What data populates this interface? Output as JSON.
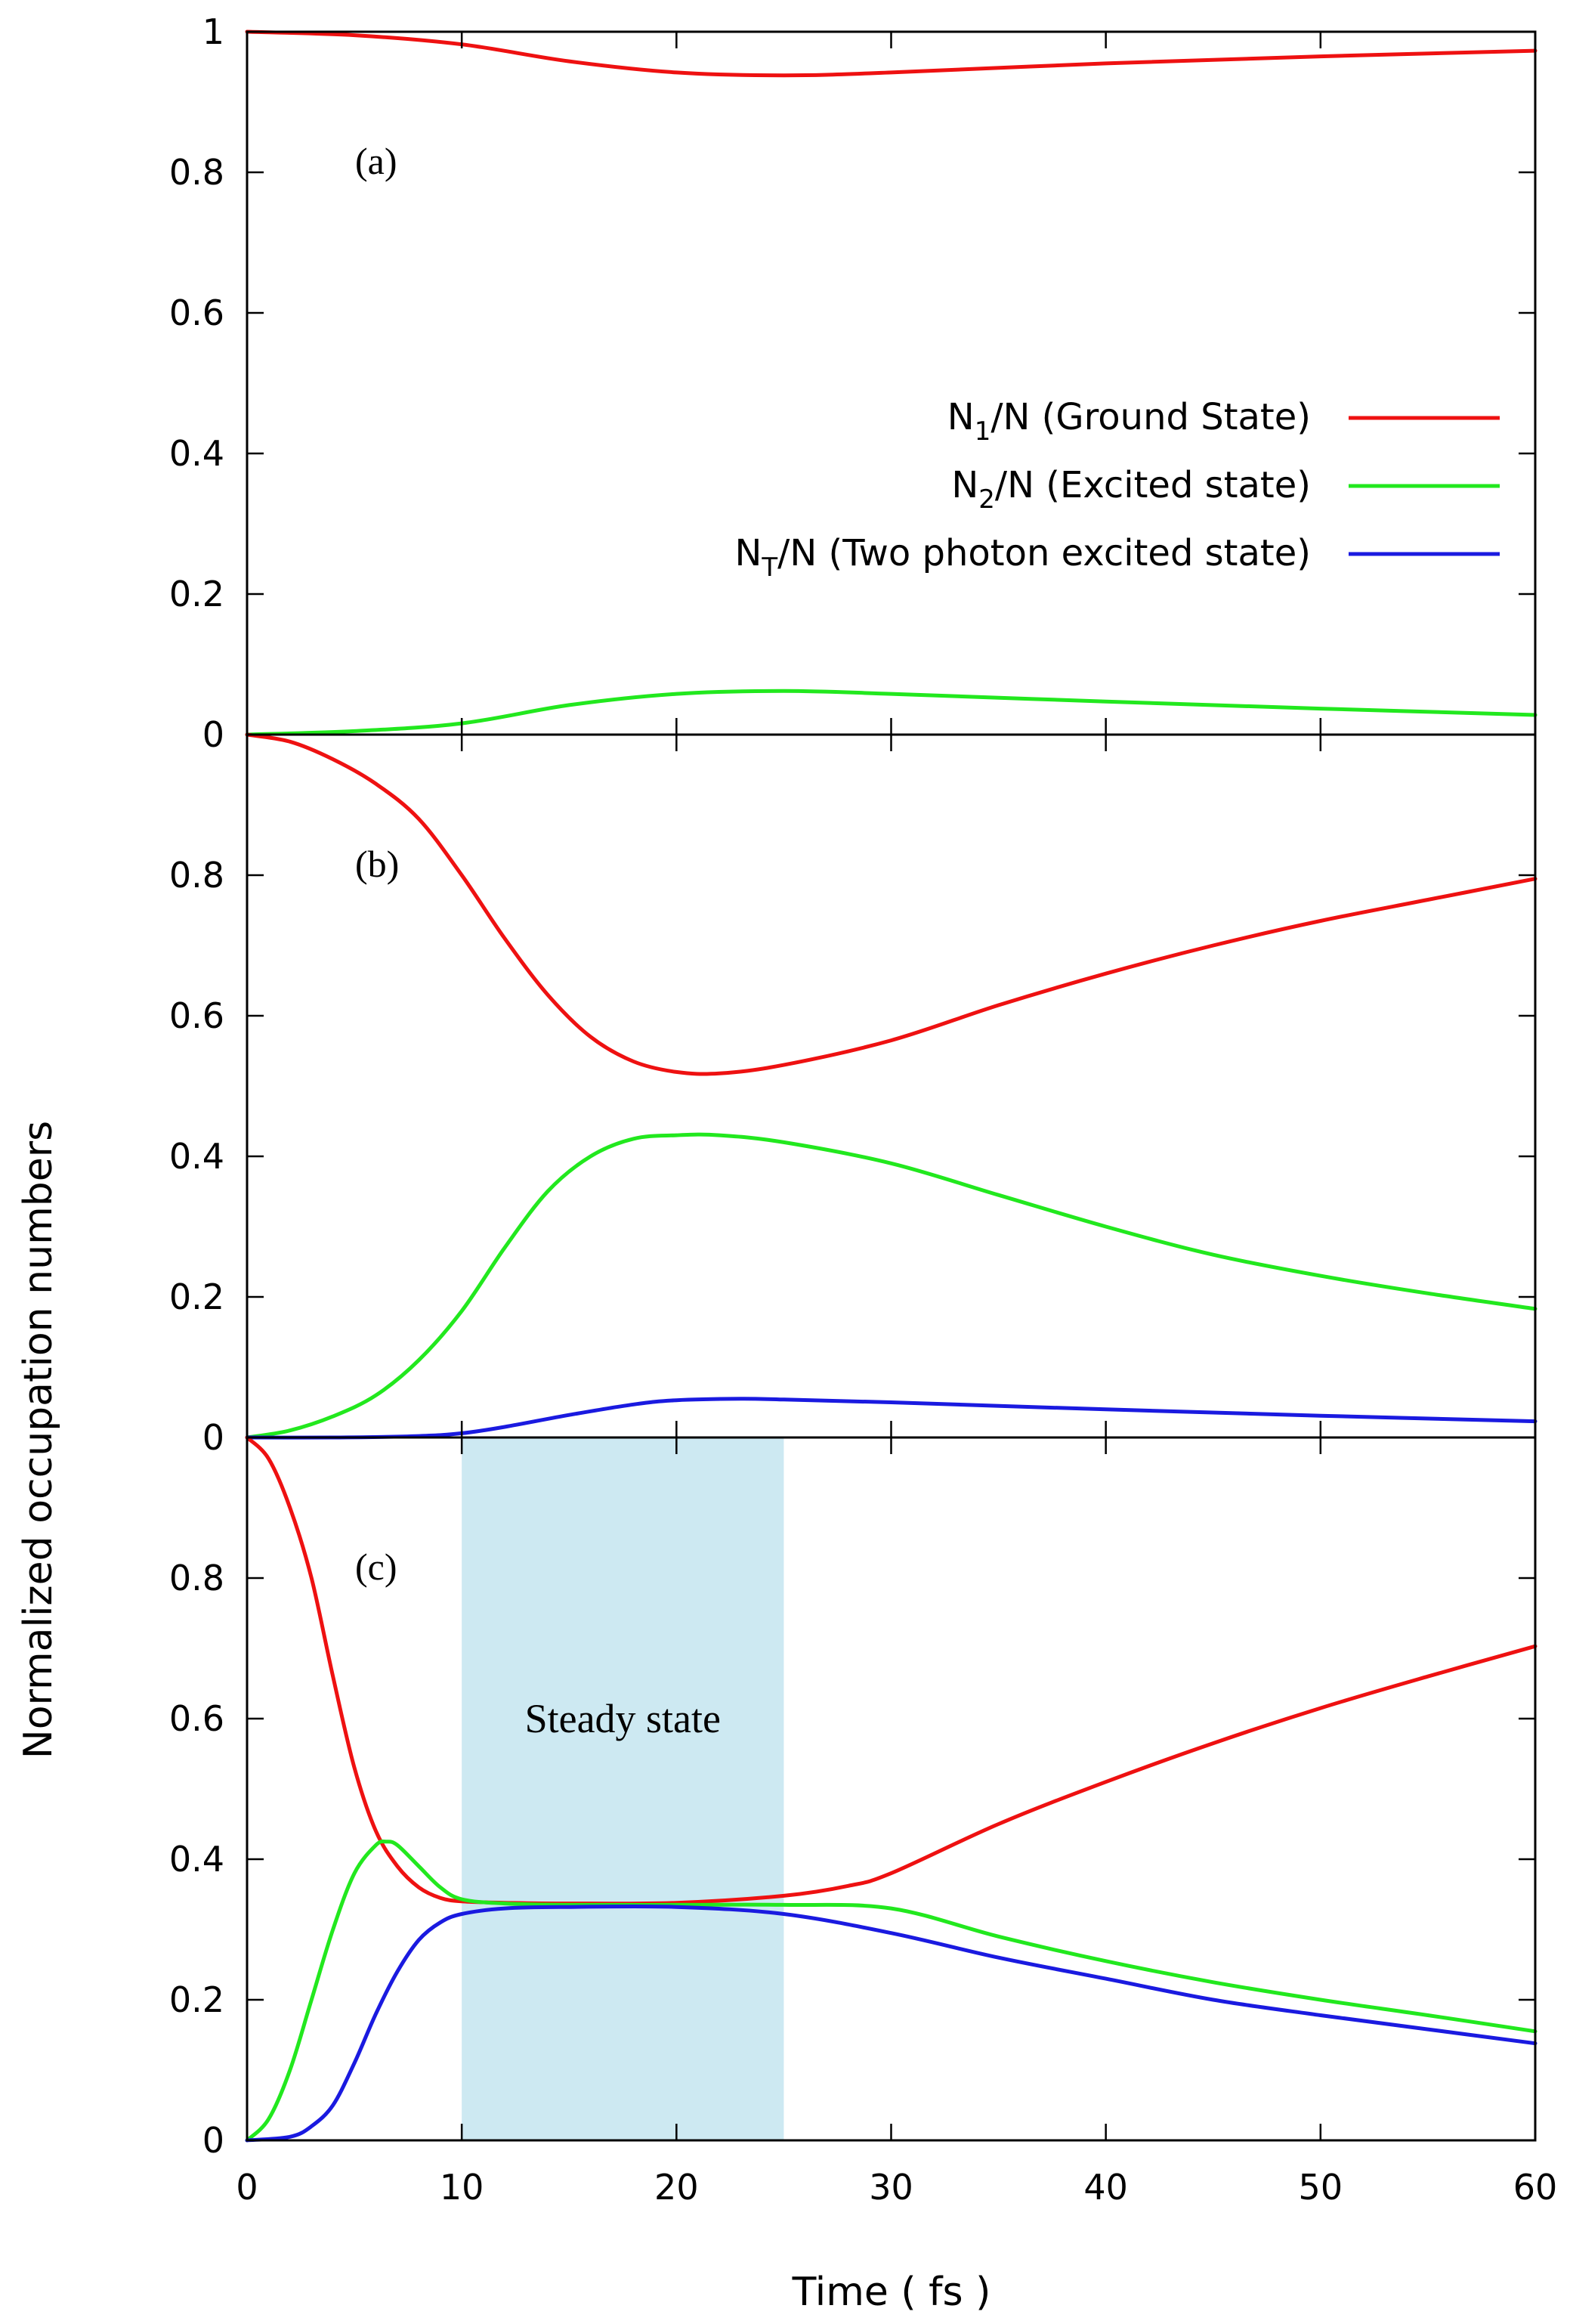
{
  "chart_data": {
    "type": "line",
    "layout": "three vertically stacked panels sharing the x axis",
    "xlabel": "Time ( fs )",
    "ylabel": "Normalized occupation numbers",
    "xlim": [
      0,
      60
    ],
    "ylim": [
      0,
      1
    ],
    "x_ticks": [
      "0",
      "10",
      "20",
      "30",
      "40",
      "50",
      "60"
    ],
    "y_ticks": [
      "0",
      "0.2",
      "0.4",
      "0.6",
      "0.8",
      "1"
    ],
    "colors": {
      "N1": "#ee1111",
      "N2": "#22e81e",
      "NT": "#1a1ae0",
      "shade": "#cde9f2"
    },
    "legend": {
      "placement": "right, top panel",
      "entries": [
        {
          "key": "N1",
          "main": "N",
          "sub": "1",
          "rest": "/N (Ground State)"
        },
        {
          "key": "N2",
          "main": "N",
          "sub": "2",
          "rest": "/N (Excited state)"
        },
        {
          "key": "NT",
          "main": "N",
          "sub": "T",
          "rest": "/N (Two photon excited state)"
        }
      ]
    },
    "panels": [
      {
        "label": "(a)",
        "series": [
          {
            "key": "N1",
            "name": "N1/N (Ground State)",
            "x": [
              0,
              5,
              10,
              15,
              20,
              25,
              30,
              40,
              50,
              60
            ],
            "y": [
              1.0,
              0.995,
              0.982,
              0.958,
              0.942,
              0.938,
              0.942,
              0.955,
              0.965,
              0.973
            ]
          },
          {
            "key": "N2",
            "name": "N2/N (Excited state)",
            "x": [
              0,
              5,
              10,
              15,
              20,
              25,
              30,
              40,
              50,
              60
            ],
            "y": [
              0.0,
              0.005,
              0.016,
              0.042,
              0.058,
              0.062,
              0.058,
              0.047,
              0.037,
              0.028
            ]
          }
        ]
      },
      {
        "label": "(b)",
        "series": [
          {
            "key": "N1",
            "name": "N1/N (Ground State)",
            "x": [
              0,
              2,
              4,
              6,
              8,
              10,
              12,
              14,
              16,
              18,
              20,
              22,
              25,
              30,
              35,
              40,
              45,
              50,
              55,
              60
            ],
            "y": [
              1.0,
              0.99,
              0.965,
              0.93,
              0.88,
              0.8,
              0.71,
              0.63,
              0.57,
              0.535,
              0.52,
              0.518,
              0.53,
              0.565,
              0.615,
              0.66,
              0.7,
              0.735,
              0.765,
              0.795
            ]
          },
          {
            "key": "N2",
            "name": "N2/N (Excited state)",
            "x": [
              0,
              2,
              4,
              6,
              8,
              10,
              12,
              14,
              16,
              18,
              20,
              22,
              25,
              30,
              35,
              40,
              45,
              50,
              55,
              60
            ],
            "y": [
              0.0,
              0.01,
              0.03,
              0.06,
              0.11,
              0.18,
              0.27,
              0.35,
              0.4,
              0.425,
              0.43,
              0.43,
              0.42,
              0.39,
              0.345,
              0.3,
              0.26,
              0.23,
              0.205,
              0.183
            ]
          },
          {
            "key": "NT",
            "name": "NT/N (Two photon excited state)",
            "x": [
              0,
              4,
              8,
              10,
              12,
              15,
              18,
              20,
              23,
              25,
              30,
              40,
              50,
              60
            ],
            "y": [
              0.0,
              0.0,
              0.002,
              0.006,
              0.015,
              0.032,
              0.047,
              0.053,
              0.055,
              0.054,
              0.05,
              0.04,
              0.031,
              0.023
            ]
          }
        ]
      },
      {
        "label": "(c)",
        "shaded_region": {
          "x_range": [
            10,
            25
          ],
          "label": "Steady state"
        },
        "series": [
          {
            "key": "N1",
            "name": "N1/N (Ground State)",
            "x": [
              0,
              1,
              2,
              3,
              4,
              5,
              6,
              7,
              8,
              9,
              10,
              12,
              15,
              20,
              25,
              28,
              30,
              35,
              40,
              45,
              50,
              55,
              60
            ],
            "y": [
              1.0,
              0.97,
              0.9,
              0.8,
              0.66,
              0.53,
              0.44,
              0.39,
              0.36,
              0.345,
              0.34,
              0.338,
              0.337,
              0.338,
              0.348,
              0.362,
              0.38,
              0.45,
              0.51,
              0.565,
              0.615,
              0.66,
              0.703
            ]
          },
          {
            "key": "N2",
            "name": "N2/N (Excited state)",
            "x": [
              0,
              1,
              2,
              3,
              4,
              5,
              6,
              6.5,
              7,
              8,
              9,
              10,
              12,
              15,
              20,
              25,
              30,
              35,
              40,
              45,
              50,
              55,
              60
            ],
            "y": [
              0.0,
              0.03,
              0.1,
              0.2,
              0.3,
              0.38,
              0.42,
              0.425,
              0.42,
              0.39,
              0.36,
              0.343,
              0.337,
              0.335,
              0.335,
              0.335,
              0.33,
              0.29,
              0.255,
              0.225,
              0.2,
              0.178,
              0.155
            ]
          },
          {
            "key": "NT",
            "name": "NT/N (Two photon excited state)",
            "x": [
              0,
              2,
              3,
              4,
              5,
              6,
              7,
              8,
              9,
              10,
              12,
              15,
              20,
              25,
              30,
              35,
              40,
              45,
              50,
              55,
              60
            ],
            "y": [
              0.0,
              0.005,
              0.02,
              0.05,
              0.11,
              0.18,
              0.24,
              0.285,
              0.31,
              0.322,
              0.33,
              0.332,
              0.332,
              0.322,
              0.295,
              0.26,
              0.23,
              0.2,
              0.178,
              0.158,
              0.138
            ]
          }
        ]
      }
    ]
  }
}
